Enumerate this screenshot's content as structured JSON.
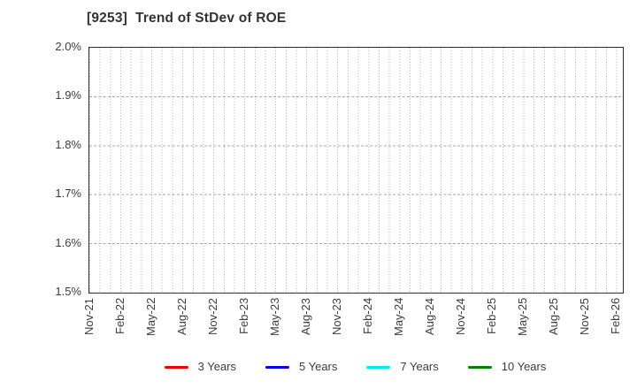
{
  "chart_data": {
    "type": "line",
    "title": "[9253]  Trend of StDev of ROE",
    "xlabel": "",
    "ylabel": "",
    "x_tick_labels": [
      "Nov-21",
      "Feb-22",
      "May-22",
      "Aug-22",
      "Nov-22",
      "Feb-23",
      "May-23",
      "Aug-23",
      "Nov-23",
      "Feb-24",
      "May-24",
      "Aug-24",
      "Nov-24",
      "Feb-25",
      "May-25",
      "Aug-25",
      "Nov-25",
      "Feb-26"
    ],
    "months_per_label": 3,
    "y_tick_labels": [
      "2.0%",
      "1.9%",
      "1.8%",
      "1.7%",
      "1.6%",
      "1.5%"
    ],
    "y_tick_values": [
      2.0,
      1.9,
      1.8,
      1.7,
      1.6,
      1.5
    ],
    "ylim": [
      1.5,
      2.0
    ],
    "y_unit": "%",
    "grid": true,
    "vertical_grid": "monthly",
    "legend_position": "bottom",
    "series": [
      {
        "name": "3 Years",
        "color": "#ee0000",
        "values": []
      },
      {
        "name": "5 Years",
        "color": "#0000ee",
        "values": []
      },
      {
        "name": "7 Years",
        "color": "#00eeee",
        "values": []
      },
      {
        "name": "10 Years",
        "color": "#008000",
        "values": []
      }
    ]
  },
  "colors": {
    "background": "#ffffff",
    "axis_border": "#2e2e2e",
    "grid_vertical": "#b0b0b0",
    "grid_horizontal": "#a8a8a8",
    "tick_label": "#3c3c3c",
    "title": "#333333"
  }
}
